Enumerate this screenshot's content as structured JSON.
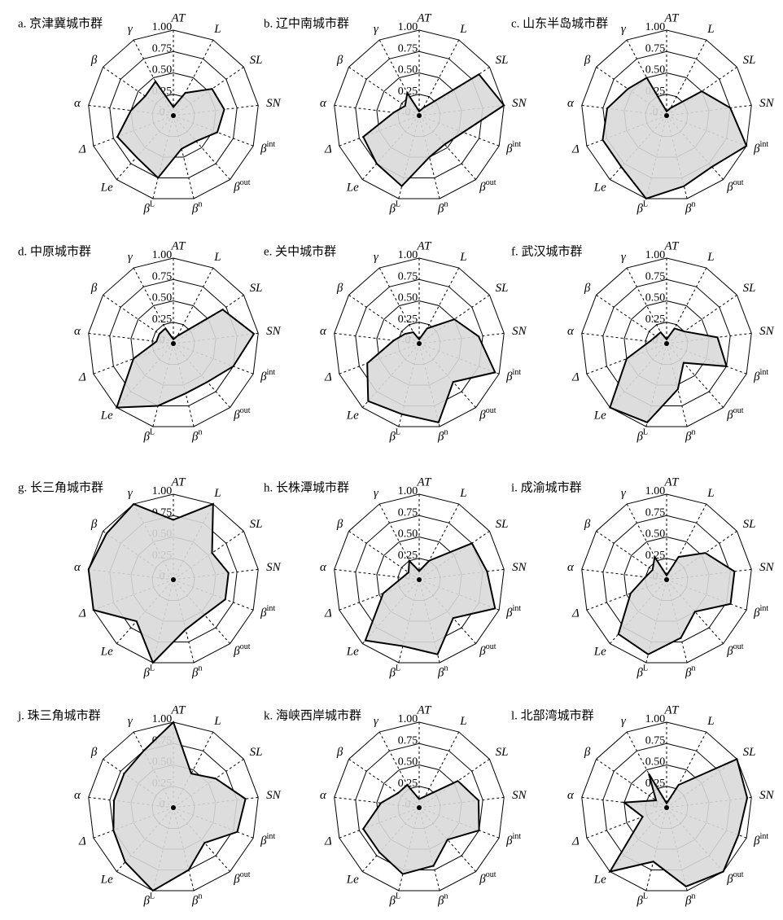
{
  "chart_data": [
    {
      "type": "radar",
      "title": "a. 京津冀城市群",
      "categories": [
        "AT",
        "L",
        "SL",
        "SN",
        "βint",
        "βout",
        "βn",
        "βL",
        "Le",
        "Δ",
        "α",
        "β",
        "γ"
      ],
      "values": [
        0.1,
        0.3,
        0.55,
        0.6,
        0.55,
        0.4,
        0.4,
        0.75,
        0.65,
        0.7,
        0.5,
        0.4,
        0.45
      ],
      "color": "#d9d9d9",
      "rlim": [
        0,
        1
      ],
      "rticks": [
        0,
        0.25,
        {
          "value": 0.5,
          "label": "0.50"
        },
        0.75,
        {
          "value": 1,
          "label": "1.00"
        }
      ]
    },
    {
      "type": "radar",
      "title": "b. 辽中南城市群",
      "categories": [
        "AT",
        "L",
        "SL",
        "SN",
        "βint",
        "βout",
        "βn",
        "βL",
        "Le",
        "Δ",
        "α",
        "β",
        "γ"
      ],
      "values": [
        0.05,
        0.1,
        0.85,
        1,
        0.55,
        0.45,
        0.5,
        0.85,
        0.75,
        0.7,
        0.3,
        0.2,
        0.3
      ],
      "color": "#d9d9d9",
      "rlim": [
        0,
        1
      ],
      "rticks": [
        0,
        0.25,
        {
          "value": 0.5,
          "label": "0.50"
        },
        0.75,
        {
          "value": 1,
          "label": "1.00"
        }
      ]
    },
    {
      "type": "radar",
      "title": "c. 山东半岛城市群",
      "categories": [
        "AT",
        "L",
        "SL",
        "SN",
        "βint",
        "βout",
        "βn",
        "βL",
        "Le",
        "Δ",
        "α",
        "β",
        "γ"
      ],
      "values": [
        0.05,
        0.1,
        0.5,
        0.75,
        1,
        0.8,
        0.85,
        1,
        0.8,
        0.8,
        0.7,
        0.55,
        0.5
      ],
      "color": "#d9d9d9",
      "rlim": [
        0,
        1
      ],
      "rticks": [
        0,
        0.25,
        {
          "value": 0.5,
          "label": "0.50"
        },
        0.75,
        {
          "value": 1,
          "label": "1.00"
        }
      ]
    },
    {
      "type": "radar",
      "title": "d. 中原城市群",
      "categories": [
        "AT",
        "L",
        "SL",
        "SN",
        "βint",
        "βout",
        "βn",
        "βL",
        "Le",
        "Δ",
        "α",
        "β",
        "γ"
      ],
      "values": [
        0.05,
        0.1,
        0.7,
        0.95,
        0.75,
        0.6,
        0.6,
        0.75,
        1,
        0.5,
        0.2,
        0.2,
        0.2
      ],
      "color": "#d9d9d9",
      "rlim": [
        0,
        1
      ],
      "rticks": [
        0,
        0.25,
        {
          "value": 0.5,
          "label": "0.50"
        },
        0.75,
        {
          "value": 1,
          "label": "1.00"
        }
      ]
    },
    {
      "type": "radar",
      "title": "e. 关中城市群",
      "categories": [
        "AT",
        "L",
        "SL",
        "SN",
        "βint",
        "βout",
        "βn",
        "βL",
        "Le",
        "Δ",
        "α",
        "β",
        "γ"
      ],
      "values": [
        0.05,
        0.2,
        0.5,
        0.7,
        0.95,
        0.6,
        0.95,
        0.85,
        0.9,
        0.65,
        0.3,
        0.2,
        0.15
      ],
      "color": "#d9d9d9",
      "rlim": [
        0,
        1
      ],
      "rticks": [
        0,
        0.25,
        {
          "value": 0.5,
          "label": "0.50"
        },
        0.75,
        {
          "value": 1,
          "label": "1.00"
        }
      ]
    },
    {
      "type": "radar",
      "title": "f. 武汉城市群",
      "categories": [
        "AT",
        "L",
        "SL",
        "SN",
        "βint",
        "βout",
        "βn",
        "βL",
        "Le",
        "Δ",
        "α",
        "β",
        "γ"
      ],
      "values": [
        0.05,
        0.2,
        0.25,
        0.6,
        0.75,
        0.3,
        0.55,
        0.95,
        1,
        0.5,
        0.2,
        0.15,
        0.15
      ],
      "color": "#d9d9d9",
      "rlim": [
        0,
        1
      ],
      "rticks": [
        0,
        0.25,
        {
          "value": 0.5,
          "label": "0.50"
        },
        0.75,
        {
          "value": 1,
          "label": "1.00"
        }
      ]
    },
    {
      "type": "radar",
      "title": "g. 长三角城市群",
      "categories": [
        "AT",
        "L",
        "SL",
        "SN",
        "βint",
        "βout",
        "βn",
        "βL",
        "Le",
        "Δ",
        "α",
        "β",
        "γ"
      ],
      "values": [
        0.7,
        1,
        0.55,
        0.65,
        0.65,
        0.55,
        0.6,
        1,
        0.65,
        1,
        1,
        0.95,
        1
      ],
      "color": "#d9d9d9",
      "rlim": [
        0,
        1
      ],
      "rticks": [
        0,
        0.25,
        {
          "value": 0.5,
          "label": "0.50"
        },
        0.75,
        {
          "value": 1,
          "label": "1.00"
        }
      ]
    },
    {
      "type": "radar",
      "title": "h. 长株潭城市群",
      "categories": [
        "AT",
        "L",
        "SL",
        "SN",
        "βint",
        "βout",
        "βn",
        "βL",
        "Le",
        "Δ",
        "α",
        "β",
        "γ"
      ],
      "values": [
        0.1,
        0.25,
        0.75,
        0.8,
        0.95,
        0.6,
        0.9,
        0.8,
        0.95,
        0.45,
        0.2,
        0.15,
        0.25
      ],
      "color": "#d9d9d9",
      "rlim": [
        0,
        1
      ],
      "rticks": [
        0,
        0.25,
        {
          "value": 0.5,
          "label": "0.50"
        },
        0.75,
        {
          "value": 1,
          "label": "1.00"
        }
      ]
    },
    {
      "type": "radar",
      "title": "i. 成渝城市群",
      "categories": [
        "AT",
        "L",
        "SL",
        "SN",
        "βint",
        "βout",
        "βn",
        "βL",
        "Le",
        "Δ",
        "α",
        "β",
        "γ"
      ],
      "values": [
        0.05,
        0.3,
        0.55,
        0.8,
        0.8,
        0.5,
        0.7,
        0.9,
        0.85,
        0.45,
        0.25,
        0.2,
        0.3
      ],
      "color": "#d9d9d9",
      "rlim": [
        0,
        1
      ],
      "rticks": [
        0,
        0.25,
        {
          "value": 0.5,
          "label": "0.50"
        },
        0.75,
        {
          "value": 1,
          "label": "1.00"
        }
      ]
    },
    {
      "type": "radar",
      "title": "j. 珠三角城市群",
      "categories": [
        "AT",
        "L",
        "SL",
        "SN",
        "βint",
        "βout",
        "βn",
        "βL",
        "Le",
        "Δ",
        "α",
        "β",
        "γ"
      ],
      "values": [
        1,
        0.45,
        0.6,
        0.85,
        0.8,
        0.55,
        0.75,
        1,
        0.85,
        0.75,
        0.7,
        0.7,
        0.75
      ],
      "color": "#d9d9d9",
      "rlim": [
        0,
        1
      ],
      "rticks": [
        0,
        0.25,
        {
          "value": 0.5,
          "label": "0.50"
        },
        0.75,
        {
          "value": 1,
          "label": "1.00"
        }
      ]
    },
    {
      "type": "radar",
      "title": "k. 海峡西岸城市群",
      "categories": [
        "AT",
        "L",
        "SL",
        "SN",
        "βint",
        "βout",
        "βn",
        "βL",
        "Le",
        "Δ",
        "α",
        "β",
        "γ"
      ],
      "values": [
        0.1,
        0.15,
        0.55,
        0.7,
        0.75,
        0.5,
        0.7,
        0.8,
        0.7,
        0.7,
        0.45,
        0.3,
        0.3
      ],
      "color": "#d9d9d9",
      "rlim": [
        0,
        1
      ],
      "rticks": [
        0,
        0.25,
        {
          "value": 0.5,
          "label": "0.50"
        },
        0.75,
        {
          "value": 1,
          "label": "1.00"
        }
      ]
    },
    {
      "type": "radar",
      "title": "l. 北部湾城市群",
      "categories": [
        "AT",
        "L",
        "SL",
        "SN",
        "βint",
        "βout",
        "βn",
        "βL",
        "Le",
        "Δ",
        "α",
        "β",
        "γ"
      ],
      "values": [
        0.05,
        0.3,
        1,
        0.95,
        0.9,
        1,
        0.95,
        0.65,
        1,
        0.3,
        0.5,
        0.15,
        0.45
      ],
      "color": "#d9d9d9",
      "rlim": [
        0,
        1
      ],
      "rticks": [
        0,
        0.25,
        {
          "value": 0.5,
          "label": "0.50"
        },
        0.75,
        {
          "value": 1,
          "label": "1.00"
        }
      ]
    }
  ]
}
